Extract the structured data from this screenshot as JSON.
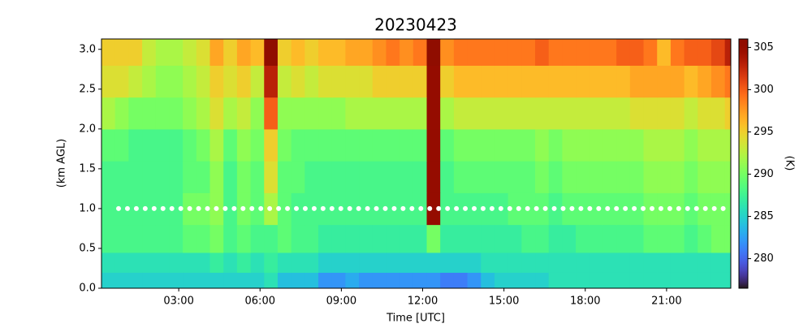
{
  "chart_data": {
    "type": "heatmap",
    "title": "20230423",
    "xlabel": "Time [UTC]",
    "ylabel": "(km AGL)",
    "colorbar_label": "(K)",
    "colormap": "turbo",
    "x": [
      0.4,
      0.9,
      1.4,
      1.9,
      2.4,
      2.9,
      3.4,
      3.9,
      4.4,
      4.9,
      5.4,
      5.9,
      6.4,
      6.9,
      7.4,
      7.9,
      8.4,
      8.9,
      9.4,
      9.9,
      10.4,
      10.9,
      11.4,
      11.9,
      12.4,
      12.9,
      13.4,
      13.9,
      14.4,
      14.9,
      15.4,
      15.9,
      16.4,
      16.9,
      17.4,
      17.9,
      18.4,
      18.9,
      19.4,
      19.9,
      20.4,
      20.9,
      21.4,
      21.9,
      22.4,
      22.9,
      23.4
    ],
    "y": [
      0.1,
      0.3,
      0.6,
      1.0,
      1.4,
      1.8,
      2.2,
      2.6,
      3.0
    ],
    "values": [
      [
        285,
        285,
        285,
        285,
        285,
        285,
        285,
        285,
        285,
        285,
        285,
        285,
        286,
        284,
        284,
        284,
        282,
        282,
        283,
        282,
        282,
        282,
        282,
        282,
        282,
        281,
        281,
        282,
        284,
        285,
        285,
        285,
        285,
        286,
        286,
        286,
        286,
        286,
        286,
        286,
        286,
        286,
        286,
        286,
        286,
        286,
        286
      ],
      [
        286,
        286,
        286,
        286,
        286,
        286,
        286,
        286,
        287,
        286,
        287,
        286,
        287,
        286,
        286,
        286,
        285,
        285,
        285,
        285,
        285,
        285,
        285,
        285,
        285,
        285,
        285,
        285,
        286,
        286,
        286,
        286,
        286,
        286,
        286,
        286,
        286,
        286,
        286,
        286,
        286,
        286,
        286,
        286,
        286,
        286,
        286
      ],
      [
        288,
        288,
        288,
        288,
        288,
        288,
        289,
        289,
        290,
        288,
        289,
        288,
        288,
        289,
        288,
        288,
        287,
        287,
        287,
        287,
        287,
        287,
        287,
        287,
        290,
        287,
        287,
        287,
        287,
        287,
        287,
        288,
        288,
        287,
        287,
        288,
        288,
        288,
        288,
        288,
        289,
        289,
        289,
        288,
        289,
        290,
        290
      ],
      [
        288,
        288,
        288,
        288,
        288,
        288,
        290,
        290,
        291,
        288,
        290,
        289,
        292,
        289,
        288,
        288,
        288,
        288,
        288,
        288,
        288,
        288,
        288,
        288,
        305,
        288,
        288,
        288,
        288,
        288,
        289,
        289,
        289,
        288,
        289,
        289,
        289,
        289,
        289,
        289,
        290,
        290,
        290,
        289,
        290,
        290,
        290
      ],
      [
        288,
        288,
        288,
        288,
        288,
        288,
        289,
        289,
        291,
        288,
        290,
        289,
        294,
        289,
        289,
        288,
        288,
        288,
        288,
        288,
        288,
        288,
        288,
        288,
        305,
        288,
        289,
        289,
        289,
        289,
        289,
        289,
        290,
        289,
        290,
        290,
        290,
        290,
        290,
        290,
        291,
        291,
        291,
        290,
        291,
        291,
        291
      ],
      [
        289,
        289,
        288,
        288,
        288,
        288,
        289,
        290,
        292,
        289,
        291,
        290,
        295,
        290,
        289,
        289,
        289,
        289,
        289,
        289,
        289,
        289,
        289,
        289,
        305,
        289,
        290,
        290,
        290,
        290,
        290,
        290,
        291,
        290,
        291,
        291,
        291,
        291,
        291,
        291,
        292,
        292,
        292,
        291,
        292,
        292,
        292
      ],
      [
        292,
        291,
        290,
        290,
        290,
        290,
        291,
        292,
        294,
        292,
        293,
        291,
        300,
        291,
        291,
        291,
        291,
        291,
        292,
        292,
        292,
        292,
        292,
        292,
        305,
        292,
        293,
        293,
        293,
        293,
        293,
        293,
        293,
        293,
        293,
        293,
        293,
        293,
        293,
        294,
        294,
        294,
        294,
        293,
        294,
        294,
        295
      ],
      [
        294,
        294,
        293,
        292,
        291,
        291,
        292,
        293,
        295,
        294,
        295,
        293,
        303,
        293,
        294,
        293,
        294,
        294,
        294,
        294,
        295,
        295,
        295,
        295,
        305,
        295,
        296,
        296,
        296,
        296,
        296,
        296,
        296,
        296,
        296,
        296,
        296,
        296,
        296,
        297,
        297,
        297,
        297,
        296,
        297,
        298,
        299
      ],
      [
        295,
        295,
        295,
        293,
        292,
        292,
        293,
        294,
        297,
        295,
        297,
        296,
        306,
        295,
        296,
        295,
        296,
        296,
        297,
        297,
        298,
        299,
        298,
        299,
        306,
        298,
        299,
        299,
        299,
        299,
        299,
        299,
        300,
        299,
        299,
        299,
        299,
        299,
        300,
        300,
        299,
        296,
        299,
        300,
        300,
        301,
        303
      ]
    ],
    "hline": 1.0,
    "xlim": [
      0.15,
      23.37
    ],
    "ylim": [
      0,
      3.13
    ],
    "xticks": [
      {
        "value": 3,
        "label": "03:00"
      },
      {
        "value": 6,
        "label": "06:00"
      },
      {
        "value": 9,
        "label": "09:00"
      },
      {
        "value": 12,
        "label": "12:00"
      },
      {
        "value": 15,
        "label": "15:00"
      },
      {
        "value": 18,
        "label": "18:00"
      },
      {
        "value": 21,
        "label": "21:00"
      }
    ],
    "yticks": [
      {
        "value": 0,
        "label": "0.0"
      },
      0.5,
      {
        "value": 1,
        "label": "1.0"
      },
      1.5,
      {
        "value": 2,
        "label": "2.0"
      },
      2.5,
      {
        "value": 3,
        "label": "3.0"
      }
    ],
    "clim": [
      276.5,
      306
    ],
    "cticks": [
      280,
      285,
      290,
      295,
      300,
      305
    ]
  }
}
